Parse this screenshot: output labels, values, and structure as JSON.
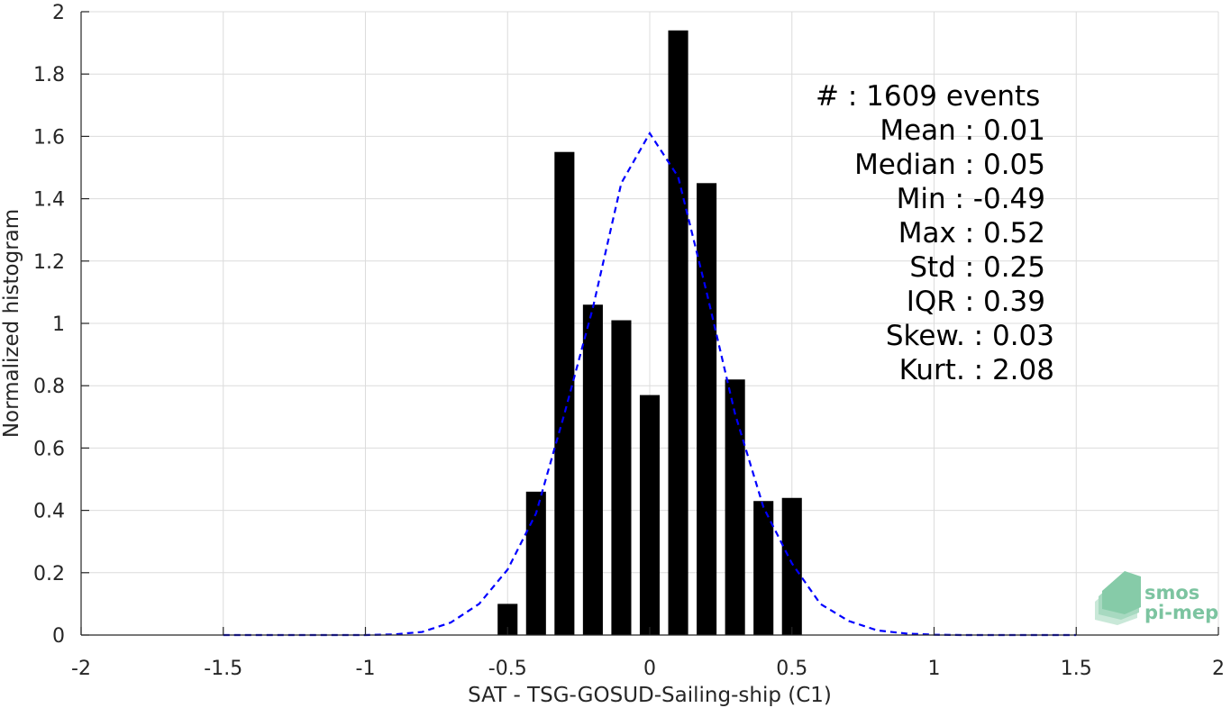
{
  "chart_data": {
    "type": "bar",
    "xlabel": "SAT - TSG-GOSUD-Sailing-ship (C1)",
    "ylabel": "Normalized histogram",
    "xlim": [
      -2,
      2
    ],
    "ylim": [
      0,
      2
    ],
    "xticks": [
      -2,
      -1.5,
      -1,
      -0.5,
      0,
      0.5,
      1,
      1.5,
      2
    ],
    "xtick_labels": [
      "-2",
      "-1.5",
      "-1",
      "-0.5",
      "0",
      "0.5",
      "1",
      "1.5",
      "2"
    ],
    "yticks": [
      0,
      0.2,
      0.4,
      0.6,
      0.8,
      1,
      1.2,
      1.4,
      1.6,
      1.8,
      2
    ],
    "ytick_labels": [
      "0",
      "0.2",
      "0.4",
      "0.6",
      "0.8",
      "1",
      "1.2",
      "1.4",
      "1.6",
      "1.8",
      "2"
    ],
    "grid": true,
    "bar_color": "#000000",
    "bar_width": 0.07,
    "bars": {
      "x": [
        -0.5,
        -0.4,
        -0.3,
        -0.2,
        -0.1,
        0,
        0.1,
        0.2,
        0.3,
        0.4,
        0.5
      ],
      "values": [
        0.1,
        0.46,
        1.55,
        1.06,
        1.01,
        0.77,
        1.94,
        1.45,
        0.82,
        0.43,
        0.44
      ]
    },
    "fit_curve": {
      "style": "dashed",
      "color": "#0000ff",
      "x": [
        -1.5,
        -1.4,
        -1.3,
        -1.2,
        -1.1,
        -1.0,
        -0.9,
        -0.8,
        -0.7,
        -0.6,
        -0.5,
        -0.4,
        -0.3,
        -0.2,
        -0.1,
        0,
        0.1,
        0.2,
        0.3,
        0.4,
        0.5,
        0.6,
        0.7,
        0.8,
        0.9,
        1.0,
        1.1,
        1.2,
        1.3,
        1.4,
        1.5
      ],
      "y": [
        0,
        0,
        0,
        0,
        0,
        0,
        0.002,
        0.01,
        0.04,
        0.1,
        0.21,
        0.39,
        0.71,
        1.05,
        1.45,
        1.61,
        1.47,
        1.1,
        0.71,
        0.41,
        0.23,
        0.1,
        0.045,
        0.015,
        0.005,
        0.001,
        0,
        0,
        0,
        0,
        0
      ]
    },
    "annotations": [
      "#  : 1609 events",
      "Mean : 0.01",
      "Median : 0.05",
      "Min : -0.49",
      "Max : 0.52",
      "Std : 0.25",
      "IQR : 0.39",
      "Skew. : 0.03",
      "Kurt. : 2.08"
    ]
  },
  "logo": {
    "line1": "smos",
    "line2": "pi-mep",
    "color": "#7cc4a0"
  }
}
